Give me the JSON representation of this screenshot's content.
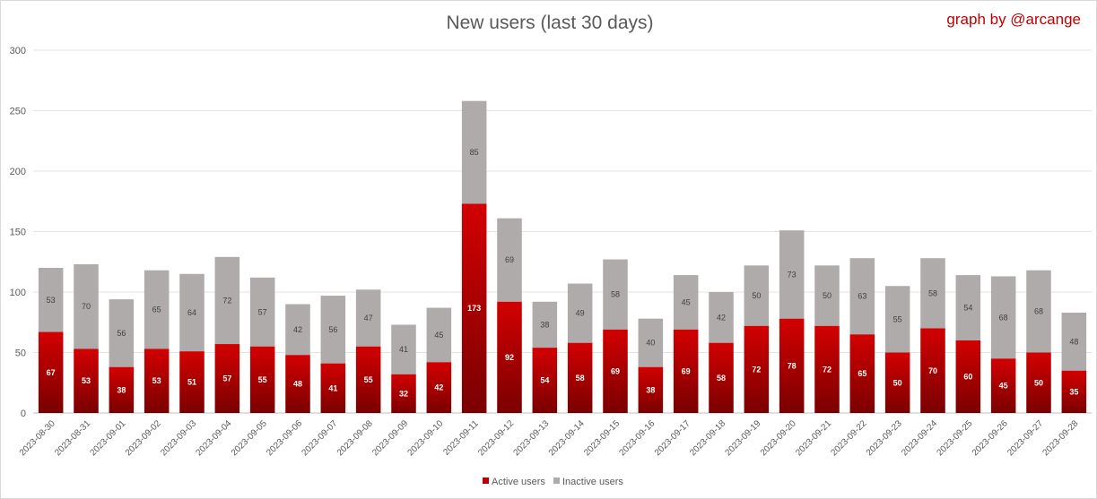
{
  "chart_data": {
    "type": "bar",
    "stacked": true,
    "title": "New users (last 30 days)",
    "credit": "graph by @arcange",
    "xlabel": "",
    "ylabel": "",
    "ylim": [
      0,
      300
    ],
    "yticks": [
      0,
      50,
      100,
      150,
      200,
      250,
      300
    ],
    "grid": true,
    "legend_position": "bottom",
    "categories": [
      "2023-08-30",
      "2023-08-31",
      "2023-09-01",
      "2023-09-02",
      "2023-09-03",
      "2023-09-04",
      "2023-09-05",
      "2023-09-06",
      "2023-09-07",
      "2023-09-08",
      "2023-09-09",
      "2023-09-10",
      "2023-09-11",
      "2023-09-12",
      "2023-09-13",
      "2023-09-14",
      "2023-09-15",
      "2023-09-16",
      "2023-09-17",
      "2023-09-18",
      "2023-09-19",
      "2023-09-20",
      "2023-09-21",
      "2023-09-22",
      "2023-09-23",
      "2023-09-24",
      "2023-09-25",
      "2023-09-26",
      "2023-09-27",
      "2023-09-28"
    ],
    "series": [
      {
        "name": "Active users",
        "color": "#c00000",
        "values": [
          67,
          53,
          38,
          53,
          51,
          57,
          55,
          48,
          41,
          55,
          32,
          42,
          173,
          92,
          54,
          58,
          69,
          38,
          69,
          58,
          72,
          78,
          72,
          65,
          50,
          70,
          60,
          45,
          50,
          35
        ]
      },
      {
        "name": "Inactive users",
        "color": "#afabab",
        "values": [
          53,
          70,
          56,
          65,
          64,
          72,
          57,
          42,
          56,
          47,
          41,
          45,
          85,
          69,
          38,
          49,
          58,
          40,
          45,
          42,
          50,
          73,
          50,
          63,
          55,
          58,
          54,
          68,
          68,
          48
        ]
      }
    ]
  }
}
